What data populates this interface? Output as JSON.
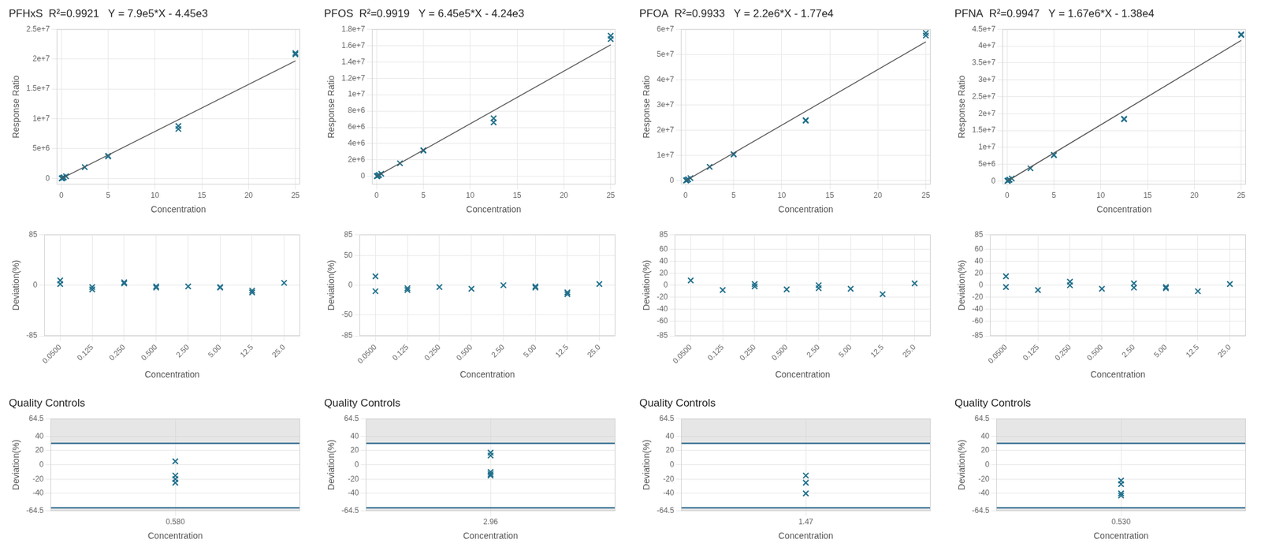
{
  "chart_data": [
    {
      "type": "scatter",
      "title": "PFHxS  R²=0.9921   Y = 7.9e5*X - 4.45e3",
      "x_label": "Concentration",
      "y_label": "Response Ratio",
      "x": [
        0.05,
        0.05,
        0.125,
        0.25,
        0.25,
        0.5,
        2.5,
        5,
        5,
        12.5,
        12.5,
        25,
        25
      ],
      "values": [
        38000,
        36000,
        90000,
        200000,
        195000,
        380000,
        1900000,
        3800000,
        3700000,
        8800000,
        8300000,
        21000000,
        20800000
      ],
      "color": "#1f6f8b",
      "marker": "x",
      "fit_line": {
        "x": [
          0,
          25
        ],
        "values": [
          -4450,
          19700000
        ],
        "color": "#555555"
      },
      "xlim": [
        -0.5,
        25.5
      ],
      "ylim": [
        -1000000,
        25000000
      ],
      "xticks": [
        0,
        5,
        10,
        15,
        20,
        25
      ],
      "yticks": [
        0,
        {
          "value": 5000000,
          "label": "5e+6"
        },
        {
          "value": 10000000,
          "label": "1e+7"
        },
        {
          "value": 15000000,
          "label": "1.5e+7"
        },
        {
          "value": 20000000,
          "label": "2e+7"
        },
        {
          "value": 25000000,
          "label": "2.5e+7"
        }
      ],
      "grid": true
    },
    {
      "type": "scatter",
      "title": "PFOS  R²=0.9919   Y = 6.45e5*X - 4.24e3",
      "x_label": "Concentration",
      "y_label": "Response Ratio",
      "x": [
        0.05,
        0.05,
        0.125,
        0.25,
        0.25,
        0.5,
        2.5,
        5,
        5,
        12.5,
        12.5,
        25,
        25
      ],
      "values": [
        30000,
        28000,
        75000,
        160000,
        155000,
        320000,
        1600000,
        3200000,
        3150000,
        7100000,
        6600000,
        17200000,
        16800000
      ],
      "color": "#1f6f8b",
      "marker": "x",
      "fit_line": {
        "x": [
          0,
          25
        ],
        "values": [
          -4240,
          16100000
        ],
        "color": "#555555"
      },
      "xlim": [
        -0.5,
        25.5
      ],
      "ylim": [
        -1000000,
        18000000
      ],
      "xticks": [
        0,
        5,
        10,
        15,
        20,
        25
      ],
      "yticks": [
        0,
        {
          "value": 2000000,
          "label": "2e+6"
        },
        {
          "value": 4000000,
          "label": "4e+6"
        },
        {
          "value": 6000000,
          "label": "6e+6"
        },
        {
          "value": 8000000,
          "label": "8e+6"
        },
        {
          "value": 10000000,
          "label": "1e+7"
        },
        {
          "value": 12000000,
          "label": "1.2e+7"
        },
        {
          "value": 14000000,
          "label": "1.4e+7"
        },
        {
          "value": 16000000,
          "label": "1.6e+7"
        },
        {
          "value": 18000000,
          "label": "1.8e+7"
        }
      ],
      "grid": true
    },
    {
      "type": "scatter",
      "title": "PFOA  R²=0.9933   Y = 2.2e6*X - 1.77e4",
      "x_label": "Concentration",
      "y_label": "Response Ratio",
      "x": [
        0.05,
        0.05,
        0.125,
        0.25,
        0.25,
        0.5,
        2.5,
        5,
        5,
        12.5,
        12.5,
        25,
        25
      ],
      "values": [
        100000,
        95000,
        260000,
        540000,
        530000,
        1050000,
        5500000,
        10500000,
        10400000,
        24000000,
        23800000,
        58500000,
        57500000
      ],
      "color": "#1f6f8b",
      "marker": "x",
      "fit_line": {
        "x": [
          0,
          25
        ],
        "values": [
          -17700,
          55000000
        ],
        "color": "#555555"
      },
      "xlim": [
        -0.5,
        25.5
      ],
      "ylim": [
        -1500000,
        60000000
      ],
      "xticks": [
        0,
        5,
        10,
        15,
        20,
        25
      ],
      "yticks": [
        0,
        {
          "value": 10000000,
          "label": "1e+7"
        },
        {
          "value": 20000000,
          "label": "2e+7"
        },
        {
          "value": 30000000,
          "label": "3e+7"
        },
        {
          "value": 40000000,
          "label": "4e+7"
        },
        {
          "value": 50000000,
          "label": "5e+7"
        },
        {
          "value": 60000000,
          "label": "6e+7"
        }
      ],
      "grid": true
    },
    {
      "type": "scatter",
      "title": "PFNA  R²=0.9947   Y = 1.67e6*X - 1.38e4",
      "x_label": "Concentration",
      "y_label": "Response Ratio",
      "x": [
        0.05,
        0.05,
        0.125,
        0.25,
        0.25,
        0.5,
        2.5,
        5,
        5,
        12.5,
        12.5,
        25,
        25
      ],
      "values": [
        80000,
        76000,
        200000,
        400000,
        395000,
        780000,
        3800000,
        7800000,
        7700000,
        18500000,
        18300000,
        43500000,
        43300000
      ],
      "color": "#1f6f8b",
      "marker": "x",
      "fit_line": {
        "x": [
          0,
          25
        ],
        "values": [
          -13800,
          41700000
        ],
        "color": "#555555"
      },
      "xlim": [
        -0.5,
        25.5
      ],
      "ylim": [
        -1000000,
        45000000
      ],
      "xticks": [
        0,
        5,
        10,
        15,
        20,
        25
      ],
      "yticks": [
        0,
        {
          "value": 5000000,
          "label": "5e+6"
        },
        {
          "value": 10000000,
          "label": "1e+7"
        },
        {
          "value": 15000000,
          "label": "1.5e+7"
        },
        {
          "value": 20000000,
          "label": "2e+7"
        },
        {
          "value": 25000000,
          "label": "2.5e+7"
        },
        {
          "value": 30000000,
          "label": "3e+7"
        },
        {
          "value": 35000000,
          "label": "3.5e+7"
        },
        {
          "value": 40000000,
          "label": "4e+7"
        },
        {
          "value": 45000000,
          "label": "4.5e+7"
        }
      ],
      "grid": true
    },
    {
      "type": "scatter",
      "x_label": "Concentration",
      "y_label": "Deviation(%)",
      "categories": [
        "0.0500",
        "0.125",
        "0.250",
        "0.500",
        "2.50",
        "5.00",
        "12.5",
        "25.0"
      ],
      "values": [
        [
          8,
          2
        ],
        [
          -7,
          -3
        ],
        [
          5,
          3
        ],
        [
          -4,
          -2
        ],
        [
          -2
        ],
        [
          -4,
          -3
        ],
        [
          -12,
          -9
        ],
        [
          4
        ]
      ],
      "color": "#1f6f8b",
      "marker": "x",
      "ylim": [
        -85,
        85
      ],
      "yticks": [
        -85,
        0,
        85
      ],
      "grid": true
    },
    {
      "type": "scatter",
      "x_label": "Concentration",
      "y_label": "Deviation(%)",
      "categories": [
        "0.0500",
        "0.125",
        "0.250",
        "0.500",
        "2.50",
        "5.00",
        "12.5",
        "25.0"
      ],
      "values": [
        [
          15,
          -10
        ],
        [
          -8,
          -5
        ],
        [
          -3
        ],
        [
          -6
        ],
        [
          0
        ],
        [
          -4,
          -2
        ],
        [
          -15,
          -12
        ],
        [
          2
        ]
      ],
      "color": "#1f6f8b",
      "marker": "x",
      "ylim": [
        -85,
        85
      ],
      "yticks": [
        -85,
        -50,
        0,
        50,
        85
      ],
      "grid": true
    },
    {
      "type": "scatter",
      "x_label": "Concentration",
      "y_label": "Deviation(%)",
      "categories": [
        "0.0500",
        "0.125",
        "0.250",
        "0.500",
        "2.50",
        "5.00",
        "12.5",
        "25.0"
      ],
      "values": [
        [
          8
        ],
        [
          -8
        ],
        [
          2,
          -2
        ],
        [
          -7
        ],
        [
          0,
          -5
        ],
        [
          -6
        ],
        [
          -15
        ],
        [
          3
        ]
      ],
      "color": "#1f6f8b",
      "marker": "x",
      "ylim": [
        -85,
        85
      ],
      "yticks": [
        -85,
        -60,
        -40,
        -20,
        0,
        20,
        40,
        60,
        85
      ],
      "grid": true
    },
    {
      "type": "scatter",
      "x_label": "Concentration",
      "y_label": "Deviation(%)",
      "categories": [
        "0.0500",
        "0.125",
        "0.250",
        "0.500",
        "2.50",
        "5.00",
        "12.5",
        "25.0"
      ],
      "values": [
        [
          15,
          -3
        ],
        [
          -8
        ],
        [
          6,
          0
        ],
        [
          -6
        ],
        [
          3,
          -4
        ],
        [
          -3,
          -5
        ],
        [
          -10
        ],
        [
          2
        ]
      ],
      "color": "#1f6f8b",
      "marker": "x",
      "ylim": [
        -85,
        85
      ],
      "yticks": [
        -85,
        -60,
        -40,
        -20,
        0,
        20,
        40,
        60,
        85
      ],
      "grid": true
    },
    {
      "type": "scatter",
      "title": "Quality Controls",
      "x_label": "Concentration",
      "y_label": "Deviation(%)",
      "categories": [
        "0.580"
      ],
      "values": [
        [
          5,
          -15,
          -20,
          -25
        ]
      ],
      "limits": [
        30,
        -60
      ],
      "color": "#1f6f8b",
      "marker": "x",
      "ylim": [
        -64.5,
        64.5
      ],
      "yticks": [
        -64.5,
        -40,
        -20,
        0,
        20,
        40,
        64.5
      ],
      "grid": true
    },
    {
      "type": "scatter",
      "title": "Quality Controls",
      "x_label": "Concentration",
      "y_label": "Deviation(%)",
      "categories": [
        "2.96"
      ],
      "values": [
        [
          17,
          13,
          -10,
          -13,
          -15
        ]
      ],
      "limits": [
        30,
        -60
      ],
      "color": "#1f6f8b",
      "marker": "x",
      "ylim": [
        -64.5,
        64.5
      ],
      "yticks": [
        -64.5,
        -40,
        -20,
        0,
        20,
        40,
        64.5
      ],
      "grid": true
    },
    {
      "type": "scatter",
      "title": "Quality Controls",
      "x_label": "Concentration",
      "y_label": "Deviation(%)",
      "categories": [
        "1.47"
      ],
      "values": [
        [
          -15,
          -25,
          -40
        ]
      ],
      "limits": [
        30,
        -60
      ],
      "color": "#1f6f8b",
      "marker": "x",
      "ylim": [
        -64.5,
        64.5
      ],
      "yticks": [
        -64.5,
        -40,
        -20,
        0,
        20,
        40,
        64.5
      ],
      "grid": true
    },
    {
      "type": "scatter",
      "title": "Quality Controls",
      "x_label": "Concentration",
      "y_label": "Deviation(%)",
      "categories": [
        "0.530"
      ],
      "values": [
        [
          -22,
          -27,
          -40,
          -43
        ]
      ],
      "limits": [
        30,
        -60
      ],
      "color": "#1f6f8b",
      "marker": "x",
      "ylim": [
        -64.5,
        64.5
      ],
      "yticks": [
        -64.5,
        -40,
        -20,
        0,
        20,
        40,
        64.5
      ],
      "grid": true
    }
  ]
}
